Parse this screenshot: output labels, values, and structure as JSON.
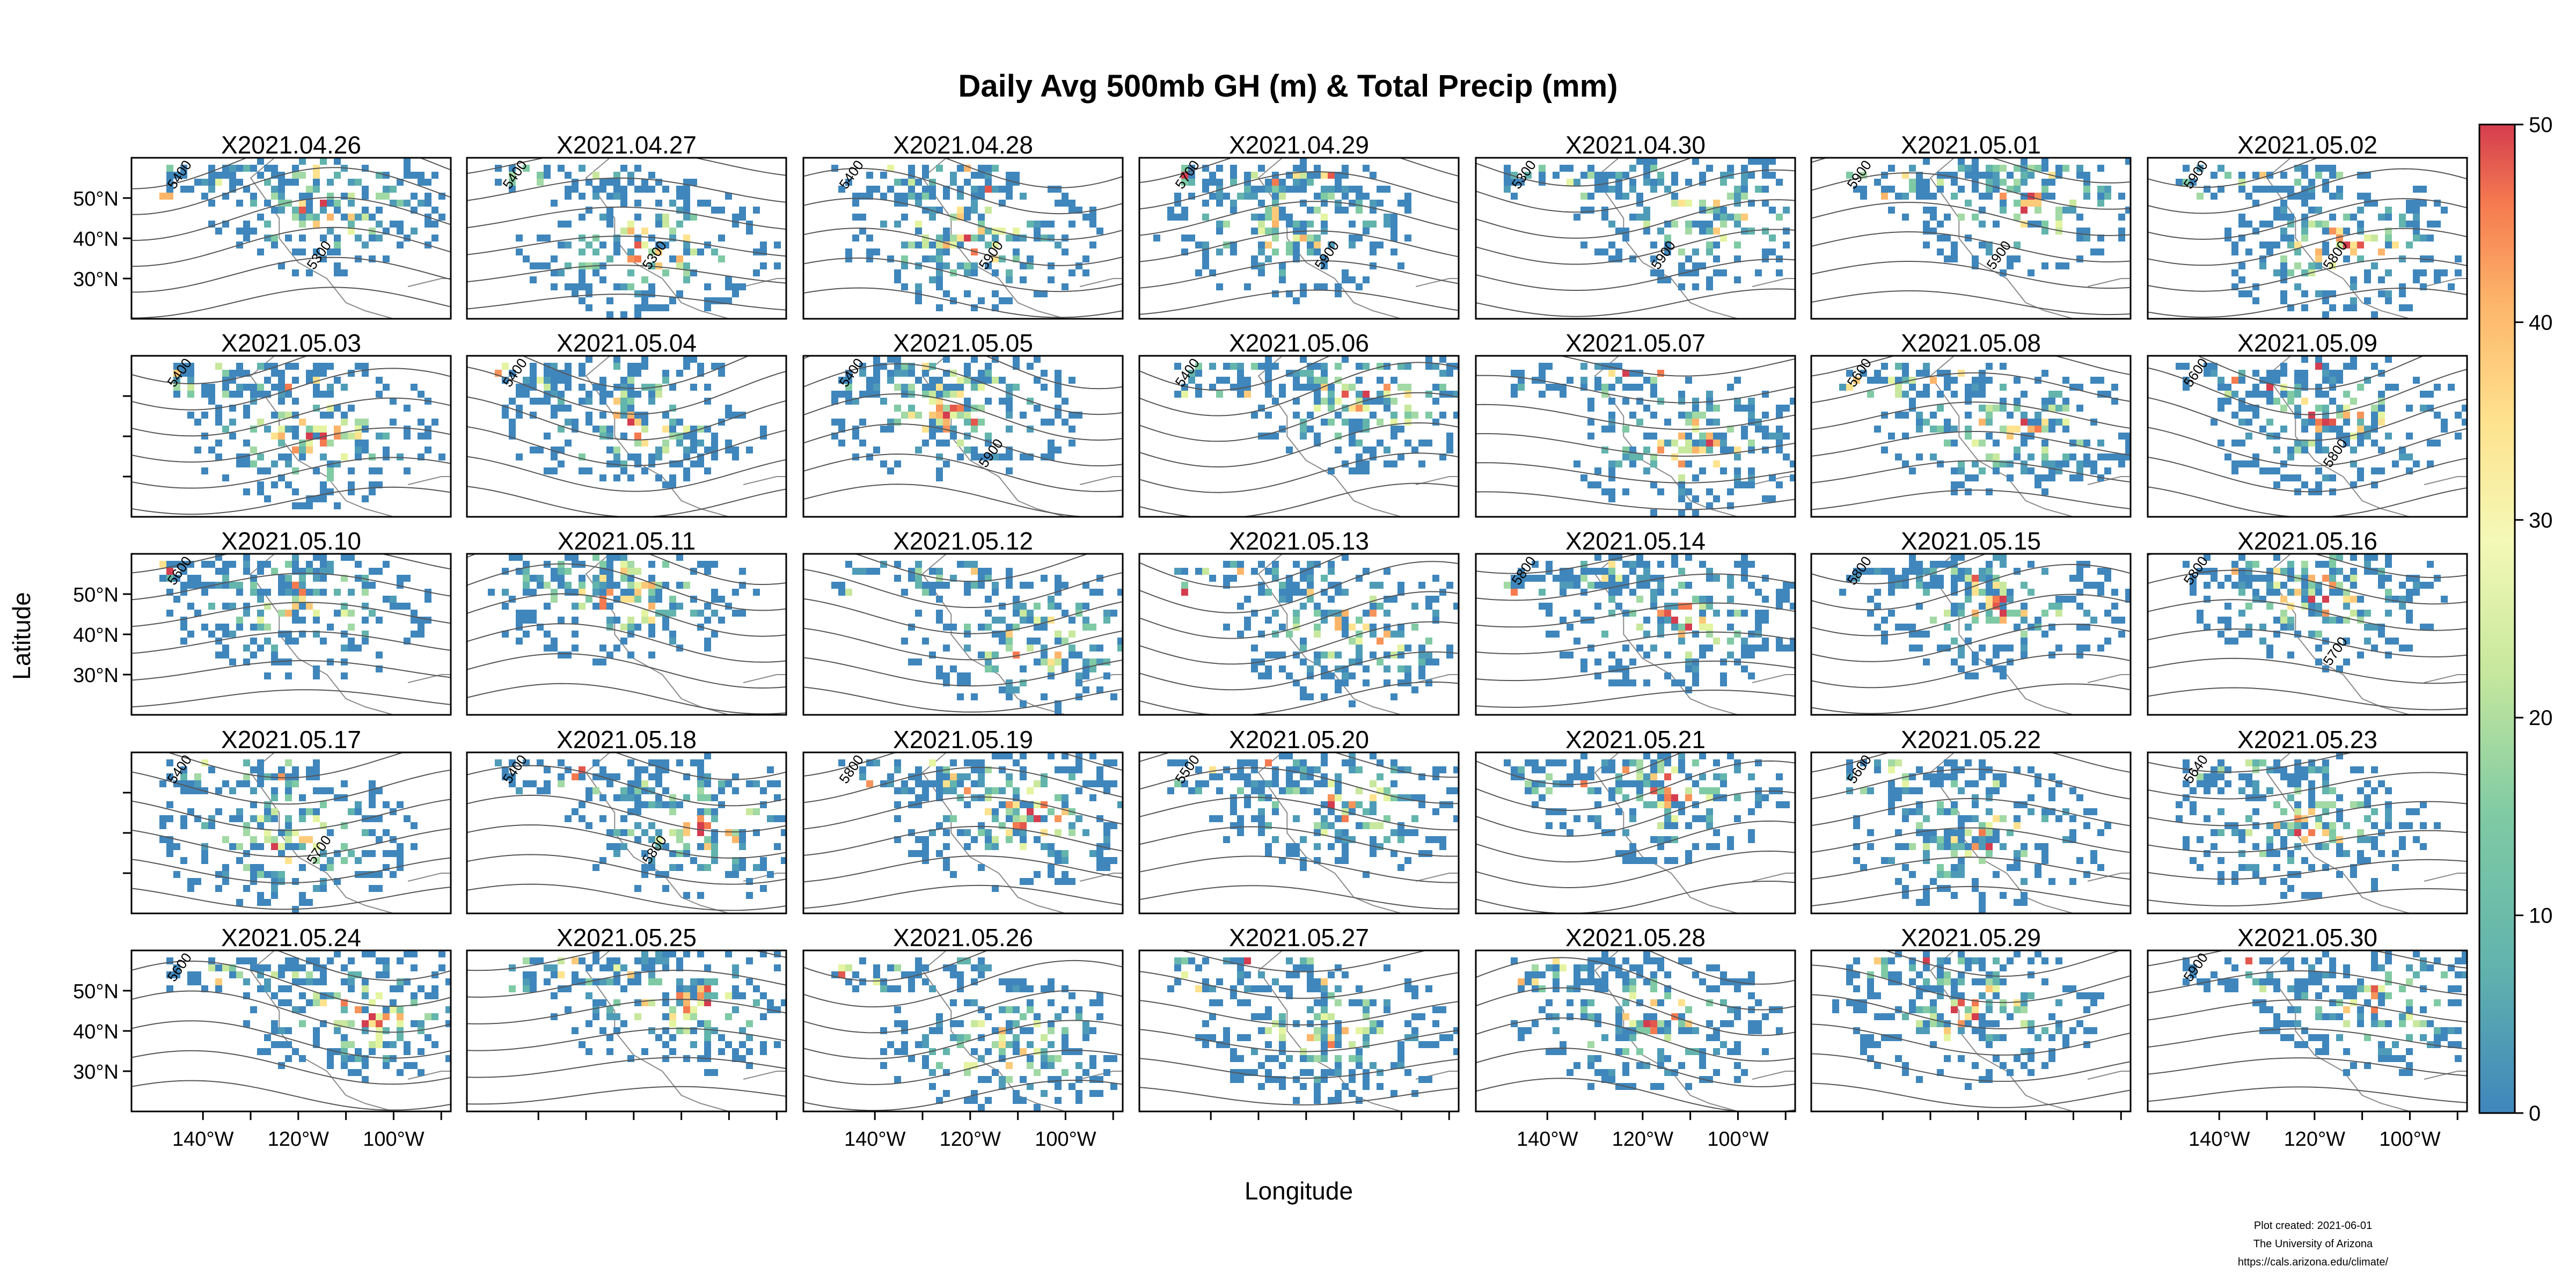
{
  "chart_data": {
    "type": "heatmap",
    "title": "Daily Avg 500mb GH (m) & Total Precip (mm)",
    "xlabel": "Longitude",
    "ylabel": "Latitude",
    "panels": [
      "X2021.04.26",
      "X2021.04.27",
      "X2021.04.28",
      "X2021.04.29",
      "X2021.04.30",
      "X2021.05.01",
      "X2021.05.02",
      "X2021.05.03",
      "X2021.05.04",
      "X2021.05.05",
      "X2021.05.06",
      "X2021.05.07",
      "X2021.05.08",
      "X2021.05.09",
      "X2021.05.10",
      "X2021.05.11",
      "X2021.05.12",
      "X2021.05.13",
      "X2021.05.14",
      "X2021.05.15",
      "X2021.05.16",
      "X2021.05.17",
      "X2021.05.18",
      "X2021.05.19",
      "X2021.05.20",
      "X2021.05.21",
      "X2021.05.22",
      "X2021.05.23",
      "X2021.05.24",
      "X2021.05.25",
      "X2021.05.26",
      "X2021.05.27",
      "X2021.05.28",
      "X2021.05.29",
      "X2021.05.30"
    ],
    "layout": {
      "columns": 7,
      "rows": 5
    },
    "lat_ticks": [
      "50°N",
      "40°N",
      "30°N"
    ],
    "lon_ticks": [
      "140°W",
      "120°W",
      "100°W"
    ],
    "xlim": [
      -155,
      -88
    ],
    "ylim": [
      20,
      60
    ],
    "contour_labels": [
      [
        "5400",
        "5300"
      ],
      [
        "5400",
        "5300"
      ],
      [
        "5400",
        "5900"
      ],
      [
        "5700",
        "5900"
      ],
      [
        "5300",
        "5900"
      ],
      [
        "5900",
        "5900"
      ],
      [
        "5900",
        "5800"
      ],
      [
        "5400"
      ],
      [
        "5400"
      ],
      [
        "5400",
        "5900"
      ],
      [
        "5400"
      ],
      [],
      [
        "5600"
      ],
      [
        "5600",
        "5800"
      ],
      [
        "5600"
      ],
      [],
      [],
      [],
      [
        "5800"
      ],
      [
        "5800"
      ],
      [
        "5800",
        "5700"
      ],
      [
        "5400",
        "5700"
      ],
      [
        "5400",
        "5800"
      ],
      [
        "5800"
      ],
      [
        "5500"
      ],
      [],
      [
        "5600"
      ],
      [
        "5640"
      ],
      [
        "5600"
      ],
      [],
      [],
      [],
      [],
      [],
      [
        "5900"
      ]
    ],
    "colorbar": {
      "range": [
        0,
        50
      ],
      "ticks": [
        "0",
        "10",
        "20",
        "30",
        "40",
        "50"
      ],
      "colors": [
        "#3f86bc",
        "#62b4ad",
        "#a2d9a4",
        "#e4f4a1",
        "#fee28e",
        "#fdb56a",
        "#f57a4f",
        "#d43d4f"
      ]
    }
  },
  "footer": {
    "line1": "Plot created: 2021-06-01",
    "line2": "The University of Arizona",
    "line3": "https://cals.arizona.edu/climate/"
  }
}
